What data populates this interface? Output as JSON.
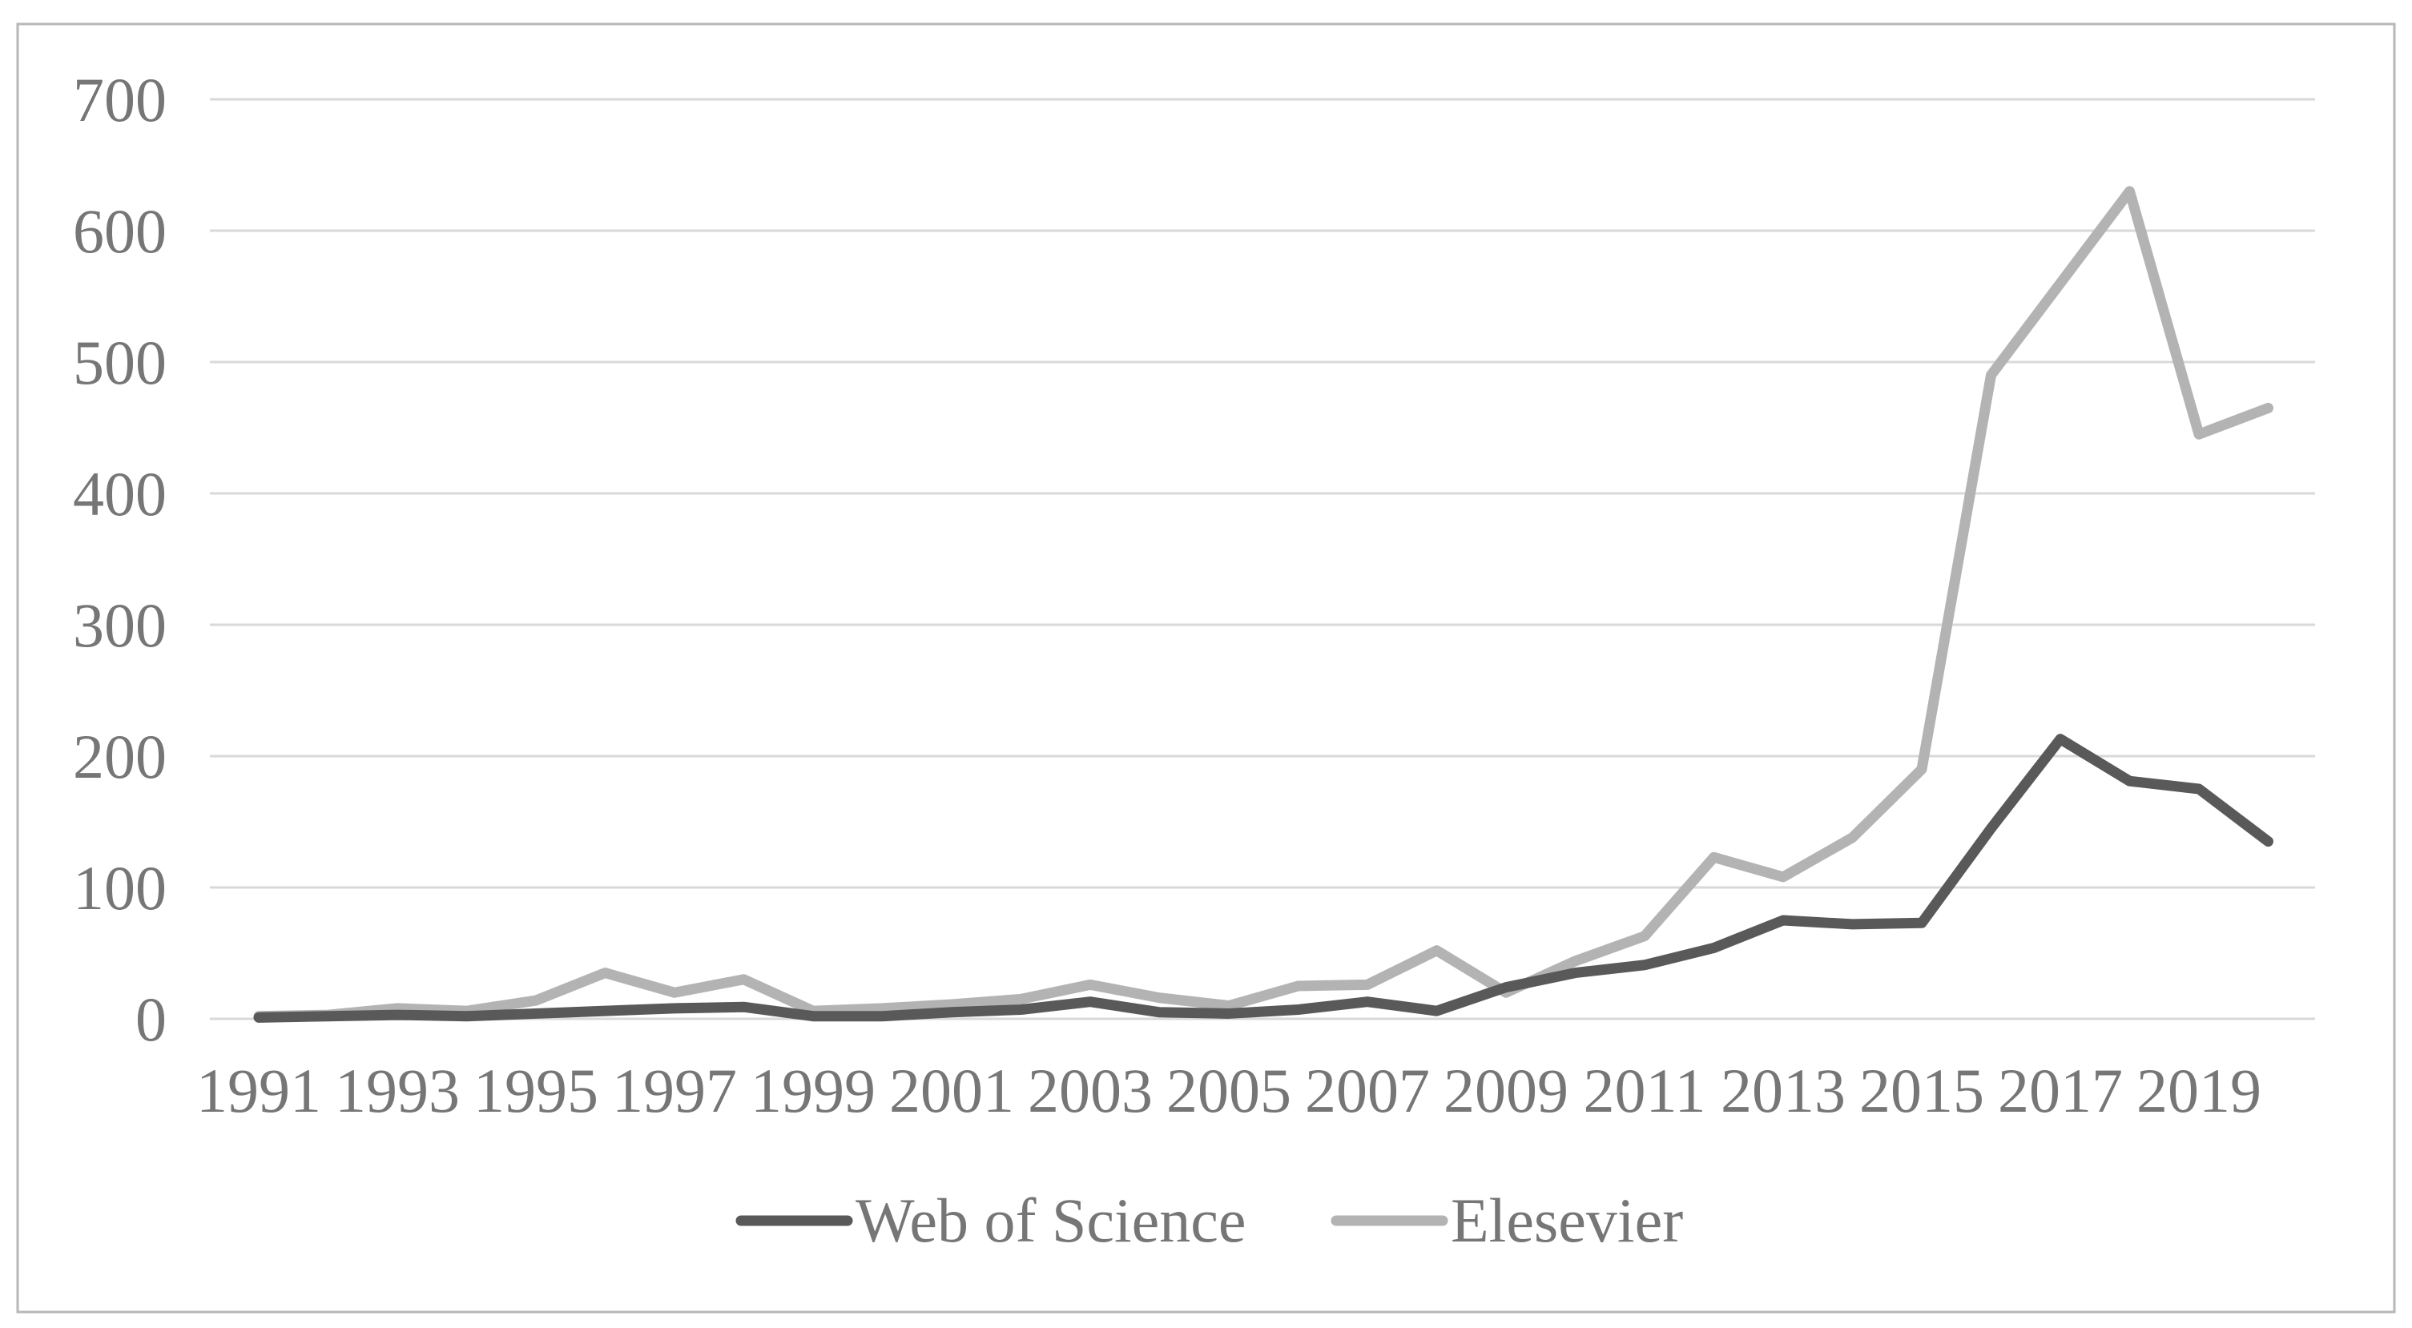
{
  "figure": {
    "background_color": "#ffffff",
    "border_color": "#b7b7b7",
    "gridline_color": "#d9d9d9",
    "text_color": "#767676"
  },
  "chart_data": {
    "type": "line",
    "title": "",
    "xlabel": "",
    "ylabel": "",
    "x": [
      1991,
      1992,
      1993,
      1994,
      1995,
      1996,
      1997,
      1998,
      1999,
      2000,
      2001,
      2002,
      2003,
      2004,
      2005,
      2006,
      2007,
      2008,
      2009,
      2010,
      2011,
      2012,
      2013,
      2014,
      2015,
      2016,
      2017,
      2018,
      2019,
      2020
    ],
    "x_tick_labels": [
      "1991",
      "1993",
      "1995",
      "1997",
      "1999",
      "2001",
      "2003",
      "2005",
      "2007",
      "2009",
      "2011",
      "2013",
      "2015",
      "2017",
      "2019"
    ],
    "y_tick_labels": [
      "0",
      "100",
      "200",
      "300",
      "400",
      "500",
      "600",
      "700"
    ],
    "ylim": [
      0,
      700
    ],
    "y_tick_step": 100,
    "grid": "horizontal",
    "legend_position": "bottom-center",
    "series": [
      {
        "name": "Web of Science",
        "color": "#595959",
        "values": [
          1,
          2,
          3,
          2,
          4,
          6,
          8,
          9,
          2,
          2,
          5,
          7,
          13,
          5,
          4,
          7,
          13,
          6,
          24,
          35,
          41,
          54,
          75,
          72,
          73,
          145,
          213,
          181,
          175,
          135
        ]
      },
      {
        "name": "Elesevier",
        "color": "#b3b3b3",
        "values": [
          2,
          3,
          8,
          6,
          14,
          35,
          20,
          30,
          6,
          8,
          11,
          15,
          26,
          16,
          10,
          25,
          26,
          52,
          20,
          44,
          63,
          123,
          108,
          138,
          190,
          490,
          560,
          630,
          445,
          465
        ]
      }
    ]
  },
  "legend": {
    "items": [
      {
        "label": "Web of Science",
        "color": "#595959"
      },
      {
        "label": "Elesevier",
        "color": "#b3b3b3"
      }
    ]
  }
}
